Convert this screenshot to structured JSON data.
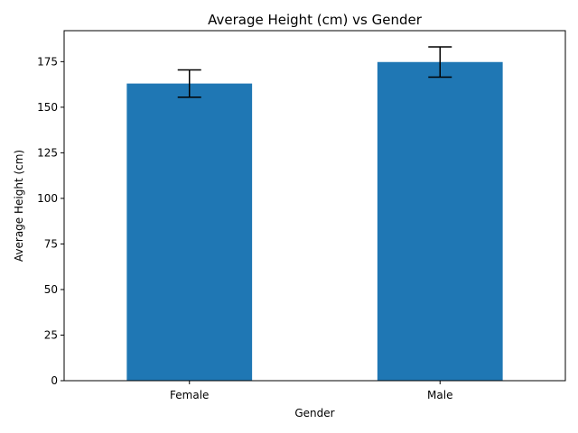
{
  "chart_data": {
    "type": "bar",
    "title": "Average Height (cm) vs Gender",
    "xlabel": "Gender",
    "ylabel": "Average Height (cm)",
    "categories": [
      "Female",
      "Male"
    ],
    "values": [
      163.0,
      174.8
    ],
    "error": [
      7.5,
      8.3
    ],
    "ylim": [
      0,
      192
    ],
    "yticks": [
      0,
      25,
      50,
      75,
      100,
      125,
      150,
      175
    ],
    "grid": false,
    "legend": "none",
    "bar_color": "#1f77b4",
    "error_color": "#000000"
  }
}
